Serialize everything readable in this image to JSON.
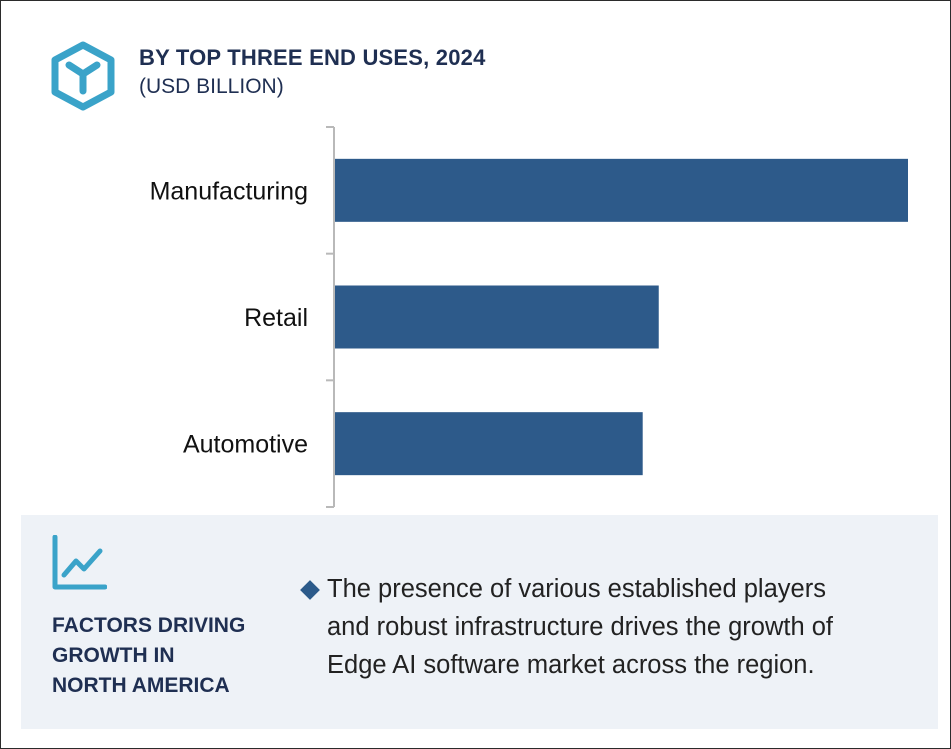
{
  "header": {
    "icon": "cube-y-icon",
    "title": "BY TOP THREE END USES, 2024",
    "subtitle": "(USD BILLION)"
  },
  "chart_data": {
    "type": "bar",
    "orientation": "horizontal",
    "title": "BY TOP THREE END USES, 2024",
    "subtitle": "(USD BILLION)",
    "categories": [
      "Manufacturing",
      "Retail",
      "Automotive"
    ],
    "values": [
      100,
      56.5,
      53.7
    ],
    "value_scale": "relative (no axis values shown)",
    "bar_color": "#2d5a8a",
    "grid": false,
    "legend": "none"
  },
  "factors_panel": {
    "icon": "growth-chart-icon",
    "heading_lines": [
      "FACTORS DRIVING",
      "GROWTH IN",
      "NORTH AMERICA"
    ],
    "bullet_icon": "diamond-bullet-icon",
    "bullet_lines": [
      "The presence of various established players",
      "and robust infrastructure drives the growth of",
      "Edge AI software market across the region."
    ]
  },
  "colors": {
    "navy_text": "#1f2f52",
    "bar": "#2d5a8a",
    "icon_teal": "#3aa3c9",
    "panel_bg": "#eef2f7"
  }
}
